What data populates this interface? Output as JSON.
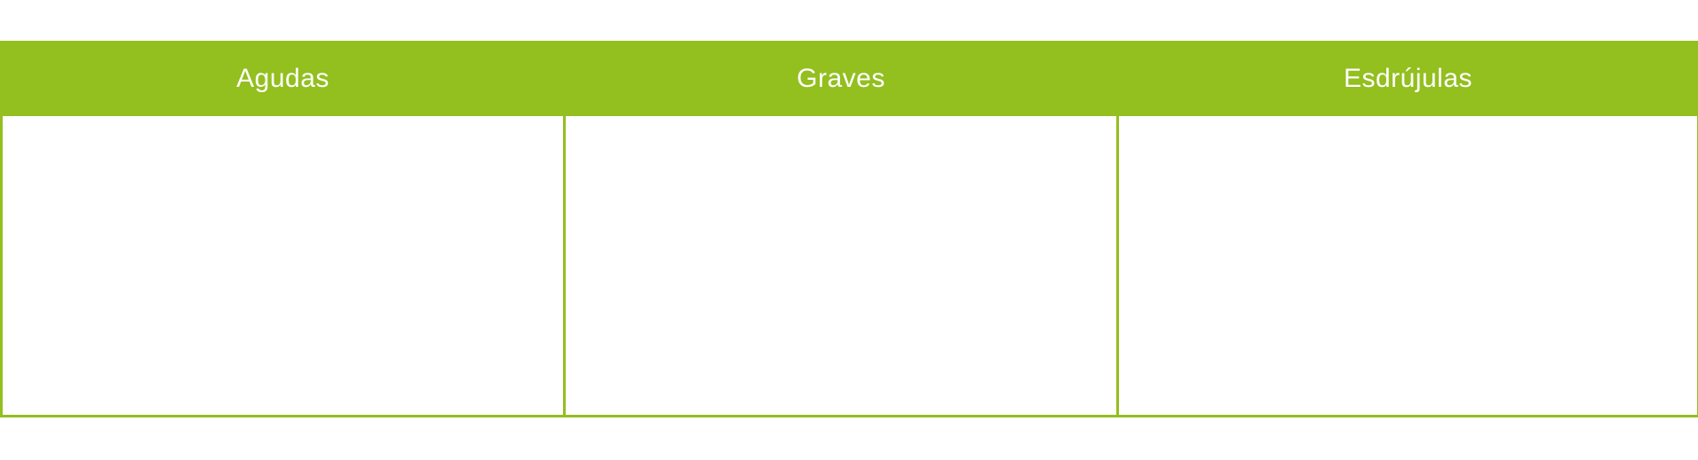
{
  "table": {
    "headers": [
      "Agudas",
      "Graves",
      "Esdrújulas"
    ],
    "colors": {
      "header_bg": "#93bf1f",
      "header_text": "#ffffff",
      "border": "#93bf1f",
      "cell_bg": "#ffffff"
    }
  }
}
